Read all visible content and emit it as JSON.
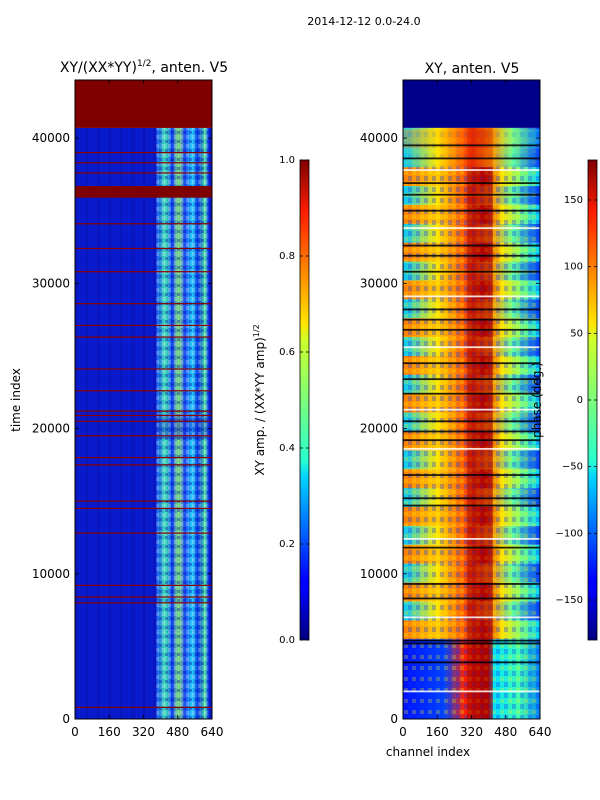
{
  "suptitle": "2014-12-12 0.0-24.0",
  "chart_data": [
    {
      "type": "heatmap",
      "title": "XY/(XX*YY)",
      "title_exponent": "1/2",
      "title_suffix": ", anten. V5",
      "xlabel": "",
      "ylabel": "time index",
      "xlim": [
        0,
        640
      ],
      "ylim": [
        0,
        44000
      ],
      "xticks": [
        0,
        160,
        320,
        480,
        640
      ],
      "yticks": [
        0,
        10000,
        20000,
        30000,
        40000
      ],
      "colorbar": {
        "label": "XY amp. / (XX*YY amp)",
        "label_exponent": "1/2",
        "range": [
          0.0,
          1.0
        ],
        "ticks": [
          "0.0",
          "0.2",
          "0.4",
          "0.6",
          "0.8",
          "1.0"
        ],
        "colormap": "jet"
      },
      "bands": [
        {
          "y0": 0,
          "y1": 40700,
          "value": 0.12,
          "desc": "low amplitude background"
        },
        {
          "y0": 40700,
          "y1": 44000,
          "value": 1.0,
          "desc": "flagged block"
        },
        {
          "y0": 35900,
          "y1": 36700,
          "value": 1.0,
          "desc": "flagged block"
        }
      ],
      "bright_columns": {
        "x0": 380,
        "x1": 625,
        "value": 0.55
      },
      "flag_rows": [
        800,
        8000,
        8400,
        9200,
        12800,
        14500,
        15000,
        17500,
        18000,
        19500,
        20500,
        20900,
        21200,
        22600,
        24100,
        26300,
        27100,
        28600,
        30800,
        32400,
        34100,
        37600,
        38300,
        39000
      ]
    },
    {
      "type": "heatmap",
      "title": "XY, anten. V5",
      "xlabel": "channel index",
      "ylabel": "",
      "xlim": [
        0,
        640
      ],
      "ylim": [
        0,
        44000
      ],
      "xticks": [
        0,
        160,
        320,
        480,
        640
      ],
      "yticks": [
        0,
        10000,
        20000,
        30000,
        40000
      ],
      "colorbar": {
        "label": "phase (deg.)",
        "range": [
          -180,
          180
        ],
        "ticks": [
          "−150",
          "−100",
          "−50",
          "0",
          "50",
          "100",
          "150"
        ],
        "tick_values": [
          -150,
          -100,
          -50,
          0,
          50,
          100,
          150
        ],
        "colormap": "jet"
      },
      "bands": [
        {
          "y0": 40700,
          "y1": 44000,
          "value": -170,
          "desc": "flagged block"
        },
        {
          "y0": 0,
          "y1": 5500,
          "desc": "blue left, red middle, cyan right"
        },
        {
          "y0": 5500,
          "y1": 40700,
          "desc": "mixed red/yellow/cyan phase"
        }
      ],
      "red_column": {
        "x0": 300,
        "x1": 420,
        "value": 170
      },
      "flag_rows": [
        1900,
        3900,
        5200,
        5400,
        7000,
        8300,
        9300,
        11800,
        12400,
        14700,
        15200,
        16800,
        18600,
        19200,
        19800,
        20500,
        21300,
        22400,
        23400,
        24500,
        25600,
        26800,
        27500,
        28200,
        29100,
        30800,
        31900,
        32600,
        33800,
        35000,
        36100,
        36900,
        37800,
        38600,
        39500
      ]
    }
  ]
}
